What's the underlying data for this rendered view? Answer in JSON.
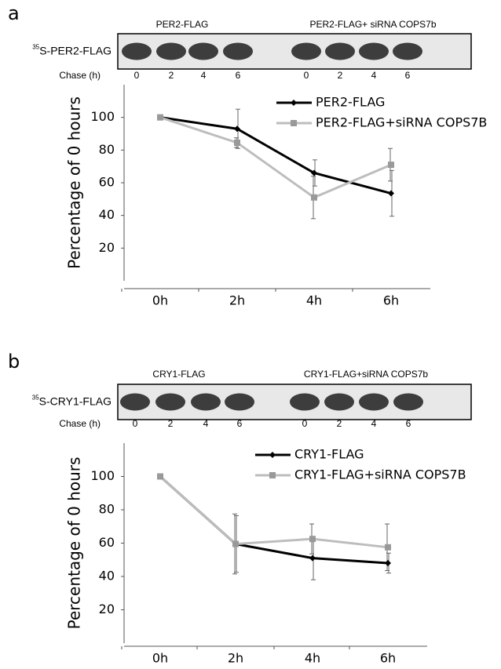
{
  "chart_data": [
    {
      "type": "line",
      "panel_label": "a",
      "blot": {
        "superscript": "35",
        "label": "S-PER2-FLAG",
        "chase_label": "Chase (h)",
        "groups": [
          "PER2-FLAG",
          "PER2-FLAG+ siRNA COPS7b"
        ],
        "lanes": [
          0,
          2,
          4,
          6,
          0,
          2,
          4,
          6
        ]
      },
      "y_label": "Percentage of 0 hours",
      "categories": [
        "0h",
        "2h",
        "4h",
        "6h"
      ],
      "ylim": [
        0,
        120
      ],
      "yticks": [
        20,
        40,
        60,
        80,
        100
      ],
      "series": [
        {
          "name": "PER2-FLAG",
          "color": "#000000",
          "marker": "diamond",
          "values": [
            100,
            93,
            66,
            53.5
          ],
          "errors": [
            1,
            12,
            8,
            14
          ]
        },
        {
          "name": "PER2-FLAG+siRNA COPS7B",
          "color": "#bdbdbd",
          "marker": "square",
          "values": [
            100,
            84.5,
            51,
            71
          ],
          "errors": [
            1,
            3,
            13,
            10
          ]
        }
      ]
    },
    {
      "type": "line",
      "panel_label": "b",
      "blot": {
        "superscript": "35",
        "label": "S-CRY1-FLAG",
        "chase_label": "Chase (h)",
        "groups": [
          "CRY1-FLAG",
          "CRY1-FLAG+siRNA COPS7b"
        ],
        "lanes": [
          0,
          2,
          4,
          6,
          0,
          2,
          4,
          6
        ]
      },
      "y_label": "Percentage of 0 hours",
      "categories": [
        "0h",
        "2h",
        "4h",
        "6h"
      ],
      "ylim": [
        0,
        120
      ],
      "yticks": [
        20,
        40,
        60,
        80,
        100
      ],
      "series": [
        {
          "name": "CRY1-FLAG",
          "color": "#000000",
          "marker": "diamond",
          "values": [
            100,
            59.5,
            51,
            48
          ],
          "errors": [
            0,
            17,
            13,
            6
          ]
        },
        {
          "name": "CRY1-FLAG+siRNA COPS7B",
          "color": "#bdbdbd",
          "marker": "square",
          "values": [
            100,
            59.5,
            62.5,
            57.5
          ],
          "errors": [
            0,
            18,
            9,
            14
          ]
        }
      ]
    }
  ]
}
